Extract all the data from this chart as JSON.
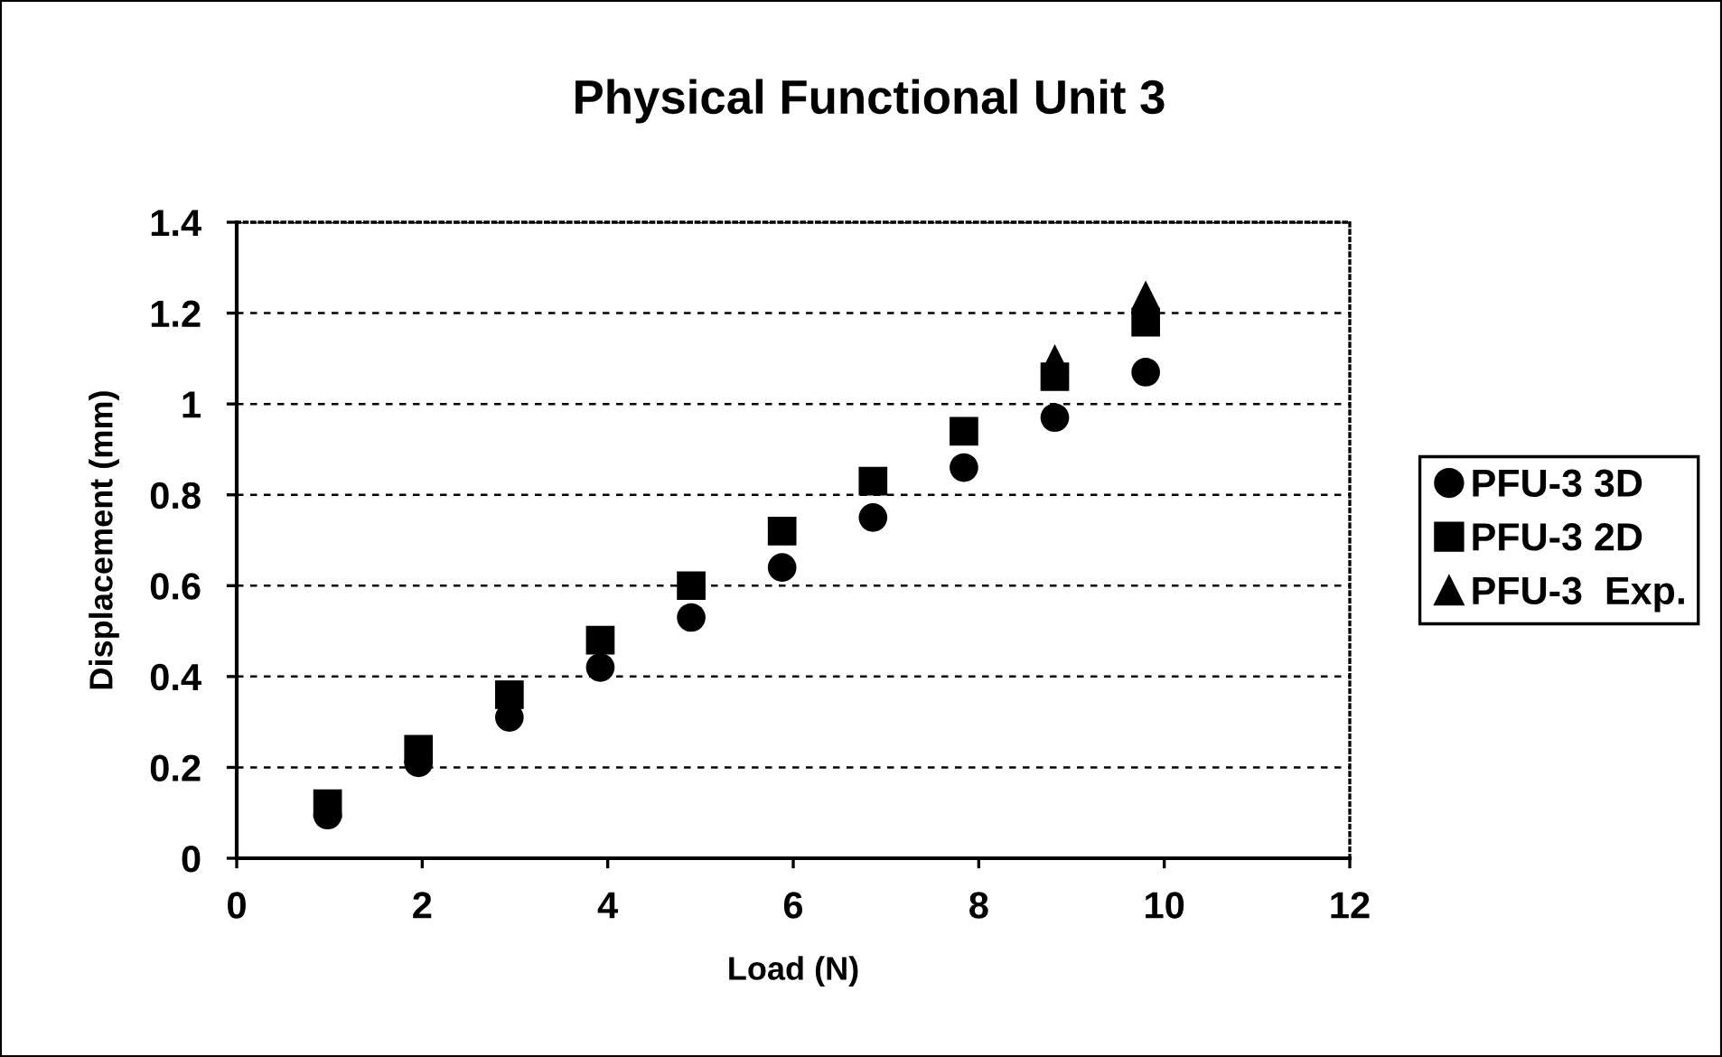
{
  "chart_data": {
    "type": "scatter",
    "title": "Physical Functional Unit 3",
    "xlabel": "Load (N)",
    "ylabel": "Displacement (mm)",
    "x": [
      0.98,
      1.96,
      2.94,
      3.92,
      4.9,
      5.88,
      6.86,
      7.84,
      8.82,
      9.8
    ],
    "series": [
      {
        "name": "PFU-3 3D",
        "color": "#000000",
        "marker": "circle",
        "values": [
          0.095,
          0.21,
          0.31,
          0.42,
          0.53,
          0.64,
          0.75,
          0.86,
          0.97,
          1.07
        ]
      },
      {
        "name": "PFU-3 2D",
        "color": "#000000",
        "marker": "square",
        "values": [
          0.12,
          0.24,
          0.36,
          0.48,
          0.6,
          0.72,
          0.83,
          0.94,
          1.06,
          1.18
        ]
      },
      {
        "name": "PFU-3  Exp.",
        "color": "#000000",
        "marker": "triangle",
        "values": [
          null,
          null,
          null,
          null,
          null,
          null,
          null,
          null,
          1.1,
          1.24
        ]
      }
    ],
    "xlim": [
      0,
      12
    ],
    "xticks": [
      0,
      2,
      4,
      6,
      8,
      10,
      12
    ],
    "ylim": [
      0,
      1.4
    ],
    "yticks": [
      0,
      0.2,
      0.4,
      0.6,
      0.8,
      1,
      1.2,
      1.4
    ],
    "grid": "y",
    "legend": "right"
  }
}
